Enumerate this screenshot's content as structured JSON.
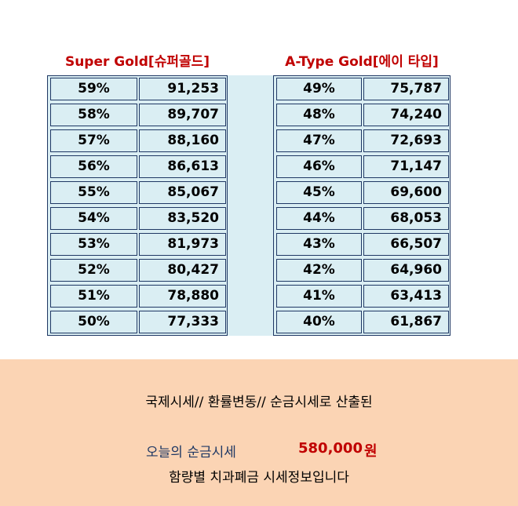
{
  "tables": {
    "super_gold": {
      "title": "Super Gold[슈퍼골드]",
      "rows": [
        {
          "percent": "59%",
          "price": "91,253"
        },
        {
          "percent": "58%",
          "price": "89,707"
        },
        {
          "percent": "57%",
          "price": "88,160"
        },
        {
          "percent": "56%",
          "price": "86,613"
        },
        {
          "percent": "55%",
          "price": "85,067"
        },
        {
          "percent": "54%",
          "price": "83,520"
        },
        {
          "percent": "53%",
          "price": "81,973"
        },
        {
          "percent": "52%",
          "price": "80,427"
        },
        {
          "percent": "51%",
          "price": "78,880"
        },
        {
          "percent": "50%",
          "price": "77,333"
        }
      ]
    },
    "a_type_gold": {
      "title": "A-Type Gold[에이 타입]",
      "rows": [
        {
          "percent": "49%",
          "price": "75,787"
        },
        {
          "percent": "48%",
          "price": "74,240"
        },
        {
          "percent": "47%",
          "price": "72,693"
        },
        {
          "percent": "46%",
          "price": "71,147"
        },
        {
          "percent": "45%",
          "price": "69,600"
        },
        {
          "percent": "44%",
          "price": "68,053"
        },
        {
          "percent": "43%",
          "price": "66,507"
        },
        {
          "percent": "42%",
          "price": "64,960"
        },
        {
          "percent": "41%",
          "price": "63,413"
        },
        {
          "percent": "40%",
          "price": "61,867"
        }
      ]
    }
  },
  "footer": {
    "line1": "국제시세// 환률변동// 순금시세로 산출된",
    "today_label": "오늘의 순금시세",
    "today_price": "580,000",
    "unit": "원",
    "line3": "함량별 치과폐금 시세정보입니다"
  },
  "colors": {
    "title_red": "#c00000",
    "cell_bg": "#daeef3",
    "border_navy": "#1f3864",
    "footer_bg": "#fbd4b4"
  }
}
